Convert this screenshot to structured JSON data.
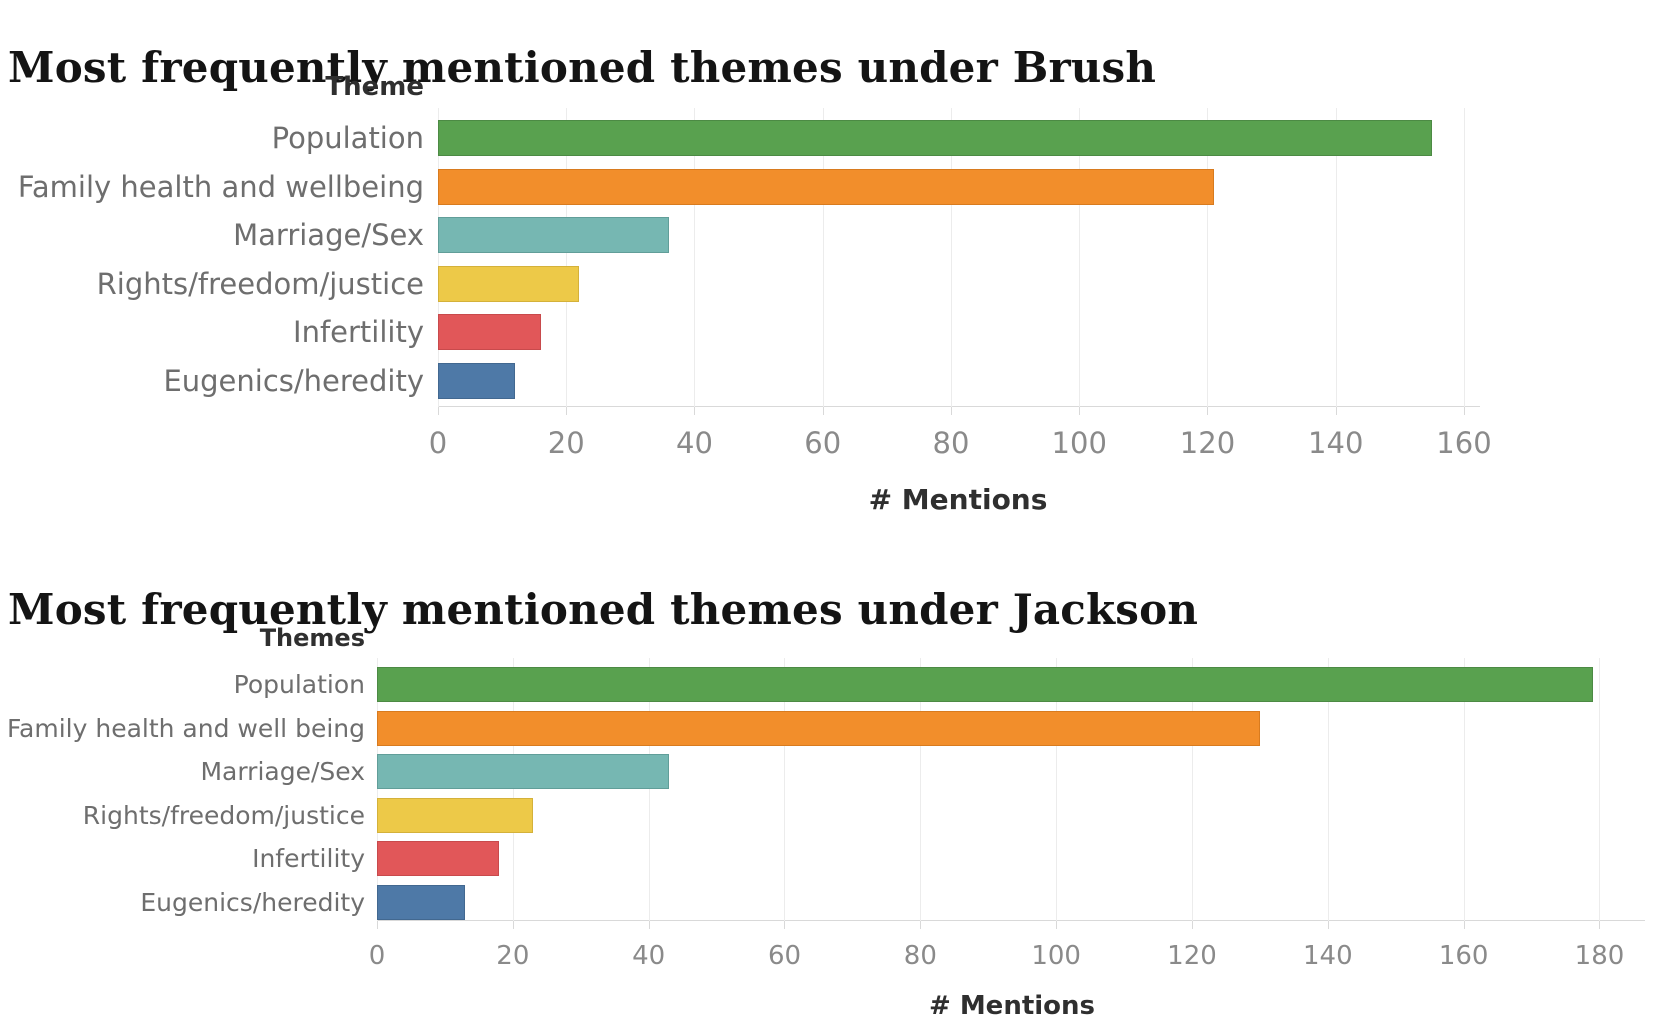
{
  "page": {
    "background": "#ffffff"
  },
  "chart_data": [
    {
      "type": "bar",
      "orientation": "horizontal",
      "title": "Most frequently mentioned themes under Brush",
      "column_header": "Theme",
      "xlabel": "# Mentions",
      "categories": [
        "Population",
        "Family health and wellbeing",
        "Marriage/Sex",
        "Rights/freedom/justice",
        "Infertility",
        "Eugenics/heredity"
      ],
      "values": [
        155,
        121,
        36,
        22,
        16,
        12
      ],
      "bar_colors": [
        "#59A14F",
        "#F28E2B",
        "#76B7B2",
        "#EDC948",
        "#E15759",
        "#4E79A7"
      ],
      "bar_border_colors": [
        "#4C8A44",
        "#D87B1F",
        "#619E99",
        "#D4B13A",
        "#C84A4C",
        "#426890"
      ],
      "xticks": [
        0,
        20,
        40,
        60,
        80,
        100,
        120,
        140,
        160
      ],
      "xlim": [
        0,
        162.5
      ],
      "grid": true,
      "legend": "none"
    },
    {
      "type": "bar",
      "orientation": "horizontal",
      "title": "Most frequently mentioned themes under Jackson",
      "column_header": "Themes",
      "xlabel": "# Mentions",
      "categories": [
        "Population",
        "Family health and well being",
        "Marriage/Sex",
        "Rights/freedom/justice",
        "Infertility",
        "Eugenics/heredity"
      ],
      "values": [
        179,
        130,
        43,
        23,
        18,
        13
      ],
      "bar_colors": [
        "#59A14F",
        "#F28E2B",
        "#76B7B2",
        "#EDC948",
        "#E15759",
        "#4E79A7"
      ],
      "bar_border_colors": [
        "#4C8A44",
        "#D87B1F",
        "#619E99",
        "#D4B13A",
        "#C84A4C",
        "#426890"
      ],
      "xticks": [
        0,
        20,
        40,
        60,
        80,
        100,
        120,
        140,
        160,
        180
      ],
      "xlim": [
        0,
        186.7
      ],
      "grid": true,
      "legend": "none"
    }
  ]
}
